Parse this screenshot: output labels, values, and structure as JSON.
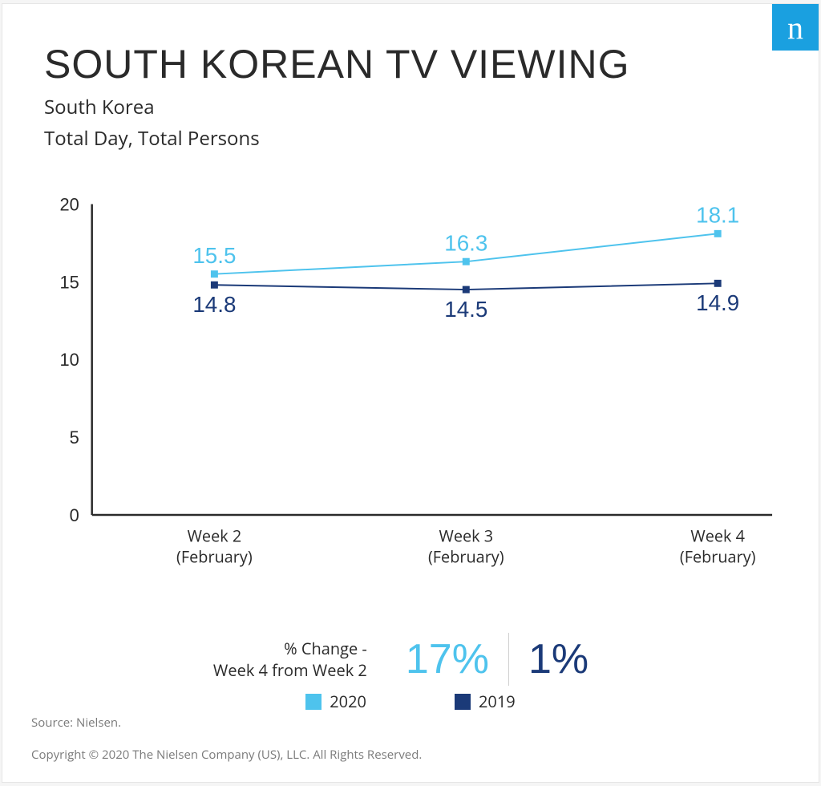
{
  "brand": {
    "logo_bg": "#1aa0e0",
    "logo_text_color": "#ffffff",
    "logo_glyph": "n"
  },
  "header": {
    "title": "SOUTH KOREAN TV VIEWING",
    "subtitle_1": "South Korea",
    "subtitle_2": "Total Day, Total Persons",
    "title_color": "#2a2a2a"
  },
  "chart": {
    "type": "line",
    "background_color": "#ffffff",
    "ylim": [
      0,
      20
    ],
    "yticks": [
      0,
      5,
      10,
      15,
      20
    ],
    "xlabels": [
      {
        "line1": "Week 2",
        "line2": "(February)"
      },
      {
        "line1": "Week 3",
        "line2": "(February)"
      },
      {
        "line1": "Week 4",
        "line2": "(February)"
      }
    ],
    "x_positions": [
      0.18,
      0.55,
      0.92
    ],
    "axis_color": "#2a2a2a",
    "axis_width": 2.5,
    "series": [
      {
        "name": "2020",
        "color": "#4ec3ed",
        "line_width": 2,
        "marker": "square",
        "marker_size": 9,
        "values": [
          15.5,
          16.3,
          18.1
        ],
        "label_position": "above"
      },
      {
        "name": "2019",
        "color": "#1b3a78",
        "line_width": 2,
        "marker": "square",
        "marker_size": 9,
        "values": [
          14.8,
          14.5,
          14.9
        ],
        "label_position": "below"
      }
    ]
  },
  "change": {
    "label_line1": "% Change -",
    "label_line2": "Week 4 from Week 2",
    "val_2020": "17%",
    "val_2019": "1%"
  },
  "legend": {
    "items": [
      {
        "label": "2020",
        "color": "#4ec3ed"
      },
      {
        "label": "2019",
        "color": "#1b3a78"
      }
    ]
  },
  "footer": {
    "source": "Source: Nielsen.",
    "copyright": "Copyright © 2020 The Nielsen Company (US), LLC. All Rights Reserved."
  }
}
